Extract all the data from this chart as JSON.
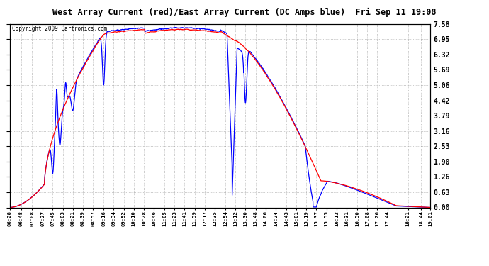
{
  "title": "West Array Current (red)/East Array Current (DC Amps blue)  Fri Sep 11 19:08",
  "copyright": "Copyright 2009 Cartronics.com",
  "yticks": [
    0.0,
    0.63,
    1.26,
    1.9,
    2.53,
    3.16,
    3.79,
    4.42,
    5.06,
    5.69,
    6.32,
    6.95,
    7.58
  ],
  "ymax": 7.58,
  "ymin": 0.0,
  "background_color": "#ffffff",
  "plot_bg_color": "#ffffff",
  "grid_color": "#999999",
  "red_color": "#ff0000",
  "blue_color": "#0000ff",
  "x_labels": [
    "06:28",
    "06:48",
    "07:08",
    "07:27",
    "07:45",
    "08:03",
    "08:21",
    "08:39",
    "08:57",
    "09:16",
    "09:34",
    "09:52",
    "10:10",
    "10:28",
    "10:46",
    "11:05",
    "11:23",
    "11:41",
    "11:59",
    "12:17",
    "12:35",
    "12:54",
    "13:12",
    "13:30",
    "13:48",
    "14:06",
    "14:24",
    "14:43",
    "15:01",
    "15:19",
    "15:37",
    "15:55",
    "16:13",
    "16:31",
    "16:50",
    "17:08",
    "17:26",
    "17:44",
    "18:21",
    "18:44",
    "19:01"
  ]
}
